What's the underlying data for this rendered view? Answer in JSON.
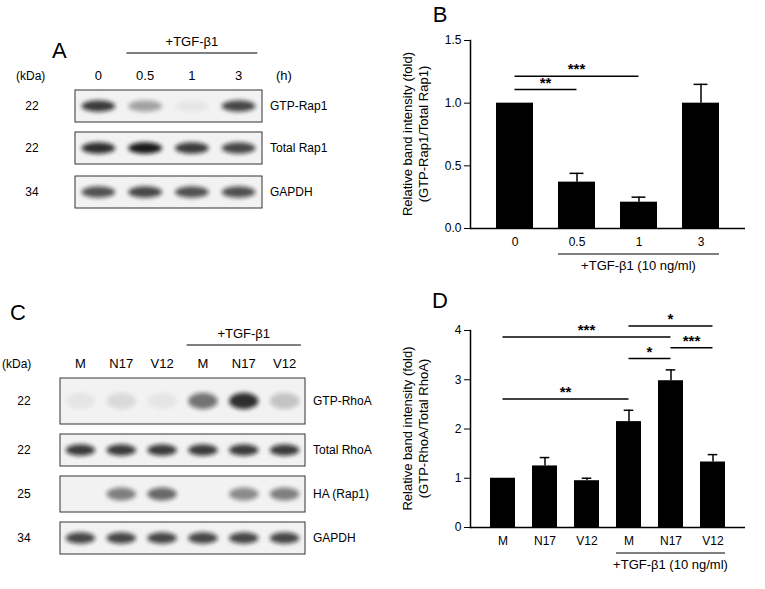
{
  "chart_data": [
    {
      "type": "bar",
      "title": "B",
      "ylabel": "Relative band intensity (fold)\n(GTP-Rap1/Total Rap1)",
      "categories": [
        "0",
        "0.5",
        "1",
        "3"
      ],
      "values": [
        1,
        0.37,
        0.21,
        1
      ],
      "errors": [
        0,
        0.07,
        0.04,
        0.15
      ],
      "color": "#000000",
      "ylim": [
        0,
        1.5
      ],
      "yticks": [
        {
          "value": 0,
          "label": "0.0"
        },
        0.5,
        {
          "value": 1,
          "label": "1.0"
        },
        1.5
      ],
      "group": {
        "label": "+TGF-β1 (10 ng/ml)",
        "from": 1,
        "to": 3
      },
      "significance": [
        {
          "from": 0,
          "to": 1,
          "label": "**"
        },
        {
          "from": 0,
          "to": 2,
          "label": "***"
        }
      ]
    },
    {
      "type": "bar",
      "title": "D",
      "ylabel": "Relative band intensity (fold)\n(GTP-RhoA/Total RhoA)",
      "categories": [
        "M",
        "N17",
        "V12",
        "M",
        "N17",
        "V12"
      ],
      "values": [
        1,
        1.25,
        0.95,
        2.15,
        2.98,
        1.33
      ],
      "errors": [
        0,
        0.17,
        0.05,
        0.23,
        0.22,
        0.15
      ],
      "color": "#000000",
      "ylim": [
        0,
        4
      ],
      "yticks": [
        0,
        1,
        2,
        3,
        4
      ],
      "group": {
        "label": "+TGF-β1 (10 ng/ml)",
        "from": 3,
        "to": 5
      },
      "significance": [
        {
          "from": 0,
          "to": 3,
          "label": "**"
        },
        {
          "from": 3,
          "to": 4,
          "label": "*"
        },
        {
          "from": 4,
          "to": 5,
          "label": "***"
        },
        {
          "from": 0,
          "to": 4,
          "label": "***"
        },
        {
          "from": 3,
          "to": 5,
          "label": "*"
        }
      ]
    }
  ],
  "blots": [
    {
      "panel": "A",
      "header": "+TGF-β1",
      "header_from": 1,
      "header_to": 3,
      "unit": "(h)",
      "kda_label": "(kDa)",
      "lanes": [
        "0",
        "0.5",
        "1",
        "3"
      ],
      "rows": [
        {
          "kda": 22,
          "label": "GTP-Rap1",
          "band_intensity": [
            0.8,
            0.35,
            0.05,
            0.75
          ]
        },
        {
          "kda": 22,
          "label": "Total Rap1",
          "band_intensity": [
            0.85,
            0.95,
            0.8,
            0.75
          ]
        },
        {
          "kda": 34,
          "label": "GAPDH",
          "band_intensity": [
            0.7,
            0.75,
            0.7,
            0.7
          ]
        }
      ]
    },
    {
      "panel": "C",
      "header": "+TGF-β1",
      "header_from": 3,
      "header_to": 5,
      "kda_label": "(kDa)",
      "lanes": [
        "M",
        "N17",
        "V12",
        "M",
        "N17",
        "V12"
      ],
      "rows": [
        {
          "kda": 22,
          "label": "GTP-RhoA",
          "band_intensity": [
            0.05,
            0.1,
            0.05,
            0.55,
            0.85,
            0.2
          ]
        },
        {
          "kda": 22,
          "label": "Total RhoA",
          "band_intensity": [
            0.8,
            0.8,
            0.8,
            0.8,
            0.8,
            0.8
          ]
        },
        {
          "kda": 25,
          "label": "HA (Rap1)",
          "band_intensity": [
            0,
            0.5,
            0.6,
            0,
            0.45,
            0.5
          ]
        },
        {
          "kda": 34,
          "label": "GAPDH",
          "band_intensity": [
            0.75,
            0.75,
            0.75,
            0.75,
            0.75,
            0.75
          ]
        }
      ]
    }
  ]
}
